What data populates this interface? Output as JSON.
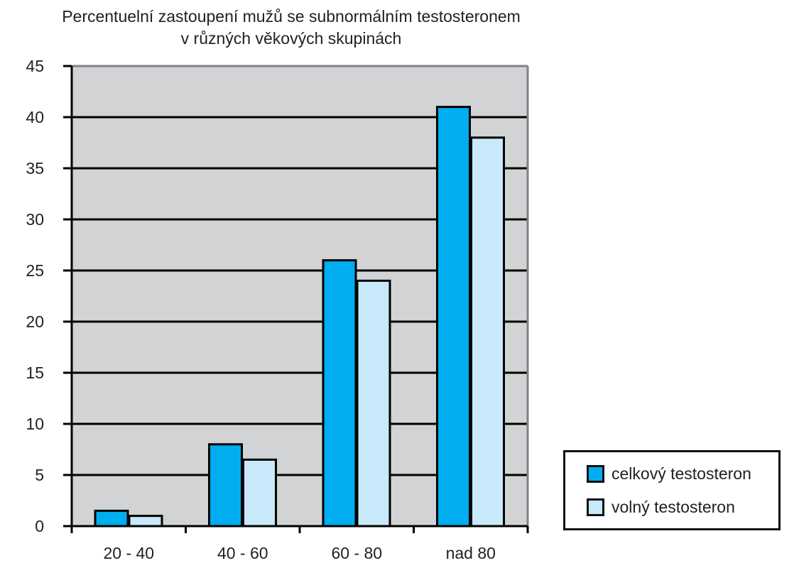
{
  "chart_data": {
    "type": "bar",
    "title_line1": "Percentuelní zastoupení mužů se subnormálním testosteronem",
    "title_line2": "v různých věkových skupinách",
    "categories": [
      "20 - 40",
      "40 - 60",
      "60 - 80",
      "nad 80"
    ],
    "series": [
      {
        "name": "celkový testosteron",
        "color": "#00aeef",
        "values": [
          1.5,
          8,
          26,
          41
        ]
      },
      {
        "name": "volný testosteron",
        "color": "#c8e9fa",
        "values": [
          1,
          6.5,
          24,
          38
        ]
      }
    ],
    "ylim": [
      0,
      45
    ],
    "yticks": [
      0,
      5,
      10,
      15,
      20,
      25,
      30,
      35,
      40,
      45
    ],
    "grid": true,
    "plot_background": "#d1d3d4",
    "legend_position": "bottom-right"
  }
}
